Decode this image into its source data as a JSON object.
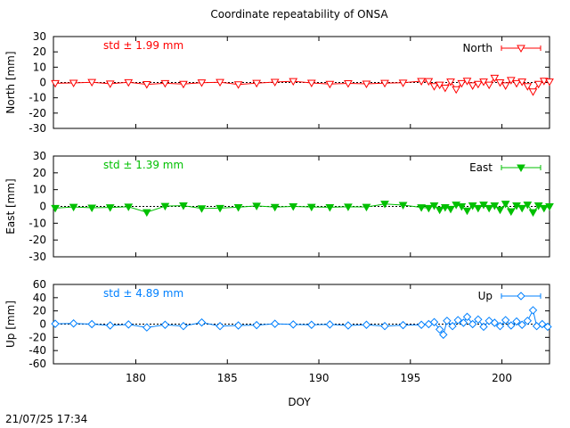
{
  "title": "Coordinate repeatability of ONSA",
  "timestamp": "21/07/25 17:34",
  "xlabel": "DOY",
  "colors": {
    "north": "#ff0000",
    "east": "#00c000",
    "up": "#0080ff",
    "axis": "#000000"
  },
  "chart_data": [
    {
      "type": "line",
      "title": "Coordinate repeatability of ONSA",
      "ylabel": "North [mm]",
      "series_name": "North",
      "std_label": "std ± 1.99 mm",
      "marker": "triangle-down-open",
      "xlim": [
        175.5,
        202.6
      ],
      "ylim": [
        -30,
        30
      ],
      "xticks": [],
      "yticks": [
        -30,
        -20,
        -10,
        0,
        10,
        20,
        30
      ],
      "points": [
        [
          175.6,
          -0.5
        ],
        [
          176.6,
          -0.3
        ],
        [
          177.6,
          0.2
        ],
        [
          178.6,
          -0.8
        ],
        [
          179.6,
          0.1
        ],
        [
          180.6,
          -1.2
        ],
        [
          181.6,
          -0.5
        ],
        [
          182.6,
          -1.0
        ],
        [
          183.6,
          -0.1
        ],
        [
          184.6,
          0.2
        ],
        [
          185.6,
          -1.3
        ],
        [
          186.6,
          -0.4
        ],
        [
          187.6,
          0.3
        ],
        [
          188.6,
          0.8
        ],
        [
          189.6,
          -0.3
        ],
        [
          190.6,
          -1.0
        ],
        [
          191.6,
          -0.6
        ],
        [
          192.6,
          -0.9
        ],
        [
          193.6,
          -0.4
        ],
        [
          194.6,
          -0.2
        ],
        [
          195.6,
          0.9
        ],
        [
          196.0,
          0.8
        ],
        [
          196.3,
          -2.5
        ],
        [
          196.6,
          -1.5
        ],
        [
          196.9,
          -3.5
        ],
        [
          197.2,
          0.5
        ],
        [
          197.5,
          -4.5
        ],
        [
          197.8,
          -0.5
        ],
        [
          198.1,
          1.0
        ],
        [
          198.4,
          -2.0
        ],
        [
          198.7,
          -1.0
        ],
        [
          199.0,
          0.5
        ],
        [
          199.3,
          -1.5
        ],
        [
          199.6,
          3.0
        ],
        [
          199.9,
          0.0
        ],
        [
          200.2,
          -2.0
        ],
        [
          200.5,
          1.5
        ],
        [
          200.8,
          -0.5
        ],
        [
          201.1,
          0.5
        ],
        [
          201.4,
          -2.5
        ],
        [
          201.7,
          -6.0
        ],
        [
          202.0,
          -1.0
        ],
        [
          202.3,
          1.0
        ],
        [
          202.6,
          0.5
        ]
      ]
    },
    {
      "type": "line",
      "ylabel": "East [mm]",
      "series_name": "East",
      "std_label": "std ± 1.39 mm",
      "marker": "triangle-down-filled",
      "xlim": [
        175.5,
        202.6
      ],
      "ylim": [
        -30,
        30
      ],
      "xticks": [],
      "yticks": [
        -30,
        -20,
        -10,
        0,
        10,
        20,
        30
      ],
      "points": [
        [
          175.6,
          -1.0
        ],
        [
          176.6,
          -0.3
        ],
        [
          177.6,
          -0.8
        ],
        [
          178.6,
          -0.6
        ],
        [
          179.6,
          -0.2
        ],
        [
          180.6,
          -3.5
        ],
        [
          181.6,
          0.2
        ],
        [
          182.6,
          0.5
        ],
        [
          183.6,
          -1.2
        ],
        [
          184.6,
          -1.0
        ],
        [
          185.6,
          -0.5
        ],
        [
          186.6,
          0.3
        ],
        [
          187.6,
          -0.4
        ],
        [
          188.6,
          0.0
        ],
        [
          189.6,
          -0.3
        ],
        [
          190.6,
          -0.5
        ],
        [
          191.6,
          -0.2
        ],
        [
          192.6,
          -0.3
        ],
        [
          193.6,
          1.5
        ],
        [
          194.6,
          0.8
        ],
        [
          195.6,
          -0.6
        ],
        [
          196.0,
          -1.0
        ],
        [
          196.3,
          0.5
        ],
        [
          196.6,
          -2.0
        ],
        [
          196.9,
          -0.5
        ],
        [
          197.2,
          -1.5
        ],
        [
          197.5,
          1.0
        ],
        [
          197.8,
          0.0
        ],
        [
          198.1,
          -2.5
        ],
        [
          198.4,
          0.5
        ],
        [
          198.7,
          -1.0
        ],
        [
          199.0,
          1.0
        ],
        [
          199.3,
          -1.0
        ],
        [
          199.6,
          0.5
        ],
        [
          199.9,
          -2.0
        ],
        [
          200.2,
          1.5
        ],
        [
          200.5,
          -3.0
        ],
        [
          200.8,
          0.5
        ],
        [
          201.1,
          -1.0
        ],
        [
          201.4,
          1.0
        ],
        [
          201.7,
          -3.5
        ],
        [
          202.0,
          0.5
        ],
        [
          202.3,
          -1.0
        ],
        [
          202.6,
          0.0
        ]
      ]
    },
    {
      "type": "line",
      "ylabel": "Up [mm]",
      "series_name": "Up",
      "std_label": "std ± 4.89 mm",
      "marker": "diamond-open",
      "xlim": [
        175.5,
        202.6
      ],
      "ylim": [
        -60,
        60
      ],
      "xticks": [
        180,
        185,
        190,
        195,
        200
      ],
      "yticks": [
        -60,
        -40,
        -20,
        0,
        20,
        40,
        60
      ],
      "points": [
        [
          175.6,
          0.5
        ],
        [
          176.6,
          1.0
        ],
        [
          177.6,
          0.0
        ],
        [
          178.6,
          -2.0
        ],
        [
          179.6,
          -0.5
        ],
        [
          180.6,
          -5.0
        ],
        [
          181.6,
          -1.0
        ],
        [
          182.6,
          -3.0
        ],
        [
          183.6,
          2.5
        ],
        [
          184.6,
          -3.0
        ],
        [
          185.6,
          -2.0
        ],
        [
          186.6,
          -1.5
        ],
        [
          187.6,
          0.5
        ],
        [
          188.6,
          -0.5
        ],
        [
          189.6,
          -1.0
        ],
        [
          190.6,
          -0.5
        ],
        [
          191.6,
          -2.0
        ],
        [
          192.6,
          -1.0
        ],
        [
          193.6,
          -3.0
        ],
        [
          194.6,
          -1.5
        ],
        [
          195.6,
          -1.0
        ],
        [
          196.0,
          0.0
        ],
        [
          196.3,
          3.0
        ],
        [
          196.6,
          -8.0
        ],
        [
          196.8,
          -16.0
        ],
        [
          197.0,
          5.0
        ],
        [
          197.3,
          -3.0
        ],
        [
          197.6,
          6.0
        ],
        [
          197.9,
          2.0
        ],
        [
          198.1,
          11.0
        ],
        [
          198.4,
          0.0
        ],
        [
          198.7,
          7.0
        ],
        [
          199.0,
          -4.0
        ],
        [
          199.3,
          5.0
        ],
        [
          199.6,
          2.0
        ],
        [
          199.9,
          -3.0
        ],
        [
          200.2,
          6.0
        ],
        [
          200.5,
          -2.0
        ],
        [
          200.8,
          4.0
        ],
        [
          201.1,
          -1.0
        ],
        [
          201.4,
          5.0
        ],
        [
          201.7,
          21.0
        ],
        [
          201.9,
          -3.0
        ],
        [
          202.2,
          0.0
        ],
        [
          202.5,
          -4.0
        ]
      ]
    }
  ]
}
